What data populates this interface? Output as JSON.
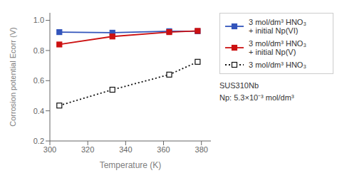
{
  "chart_data": {
    "type": "line",
    "xlabel": "Temperature (K)",
    "ylabel": "Corrosion potential Ecorr (V)",
    "xlim": [
      300,
      385
    ],
    "ylim": [
      0.2,
      1.05
    ],
    "xticks": [
      300,
      320,
      340,
      360,
      380
    ],
    "yticks": [
      0.2,
      0.4,
      0.6,
      0.8,
      {
        "value": 1.0,
        "label": "1.0"
      }
    ],
    "x": [
      305,
      333,
      363,
      378
    ],
    "series": [
      {
        "name": "3 mol/dm³ HNO₃\n+ initial Np(VI)",
        "color": "#3355bb",
        "values": [
          0.922,
          0.918,
          0.928,
          0.928
        ],
        "marker": "square",
        "line_style": "solid"
      },
      {
        "name": "3 mol/dm³ HNO₃\n+ initial Np(V)",
        "color": "#cc1111",
        "values": [
          0.84,
          0.893,
          0.922,
          0.93
        ],
        "marker": "square",
        "line_style": "solid"
      },
      {
        "name": "3 mol/dm³ HNO₃",
        "color": "#111111",
        "values": [
          0.435,
          0.54,
          0.64,
          0.725
        ],
        "marker": "square_open",
        "line_style": "dotted"
      }
    ],
    "annotations": [
      "SUS310Nb",
      "Np: 5.3×10⁻³ mol/dm³"
    ],
    "legend": "right",
    "grid": false
  }
}
